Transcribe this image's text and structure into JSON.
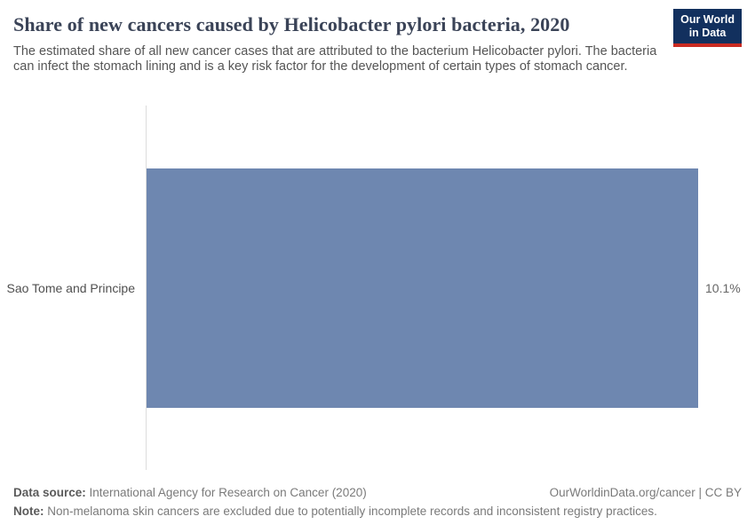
{
  "header": {
    "title": "Share of new cancers caused by Helicobacter pylori bacteria, 2020",
    "subtitle": "The estimated share of all new cancer cases that are attributed to the bacterium Helicobacter pylori. The bacteria can infect the stomach lining and is a key risk factor for the development of certain types of stomach cancer.",
    "logo": {
      "line1": "Our World",
      "line2": "in Data"
    }
  },
  "chart_data": {
    "type": "bar",
    "orientation": "horizontal",
    "title": "Share of new cancers caused by Helicobacter pylori bacteria, 2020",
    "categories": [
      "Sao Tome and Principe"
    ],
    "values": [
      10.1
    ],
    "value_labels": [
      "10.1%"
    ],
    "unit": "%",
    "xlim": [
      0,
      10.1
    ],
    "grid": false,
    "legend": false,
    "bar_color": "#6e87b0"
  },
  "footer": {
    "data_source_label": "Data source:",
    "data_source_text": " International Agency for Research on Cancer (2020)",
    "attribution": "OurWorldinData.org/cancer | CC BY",
    "note_label": "Note:",
    "note_text": " Non-melanoma skin cancers are excluded due to potentially incomplete records and inconsistent registry practices."
  },
  "colors": {
    "bar": "#6e87b0",
    "logo_navy": "#12305e",
    "logo_red": "#ca2b22",
    "title_text": "#3a4357",
    "body_text": "#555555",
    "axis_line": "#dcdcdc"
  }
}
